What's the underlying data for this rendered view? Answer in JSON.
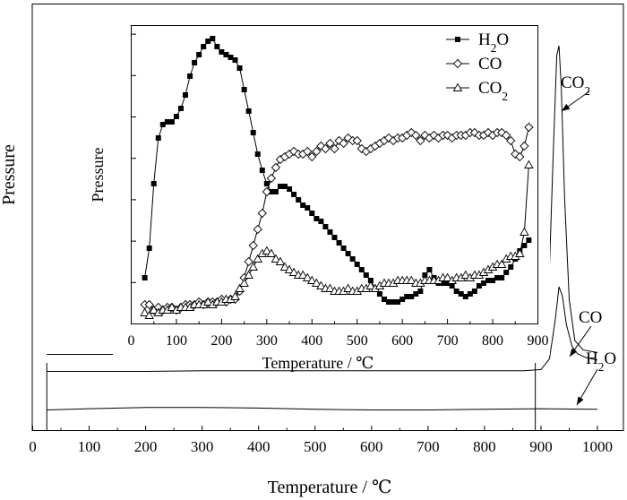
{
  "chart_data": [
    {
      "type": "line",
      "xlabel": "Temperature / ℃",
      "ylabel": "Pressure",
      "xlim": [
        0,
        1000
      ],
      "xticks": [
        "0",
        "100",
        "200",
        "300",
        "400",
        "500",
        "600",
        "700",
        "800",
        "900",
        "1000"
      ],
      "y_tick_labels": false,
      "marker_lines_x": [
        25,
        890
      ],
      "series": [
        {
          "name": "CO2",
          "annotation": "CO2",
          "x": [
            25,
            100,
            200,
            300,
            400,
            500,
            600,
            700,
            800,
            870,
            890,
            905,
            915,
            922,
            928,
            932,
            936,
            942,
            950,
            960,
            975,
            1000
          ],
          "y": [
            0.33,
            0.33,
            0.33,
            0.34,
            0.34,
            0.34,
            0.34,
            0.34,
            0.34,
            0.35,
            0.4,
            0.65,
            1.7,
            3.6,
            5.1,
            5.25,
            4.6,
            2.8,
            1.2,
            0.55,
            0.4,
            0.36
          ]
        },
        {
          "name": "CO",
          "annotation": "CO",
          "x": [
            25,
            100,
            200,
            300,
            400,
            500,
            600,
            700,
            800,
            870,
            900,
            915,
            925,
            932,
            938,
            945,
            955,
            965,
            980,
            1000
          ],
          "y": [
            0.2,
            0.2,
            0.2,
            0.21,
            0.21,
            0.21,
            0.21,
            0.21,
            0.21,
            0.21,
            0.23,
            0.4,
            1.0,
            1.55,
            1.4,
            0.95,
            0.6,
            0.48,
            0.42,
            0.38
          ]
        },
        {
          "name": "H2O",
          "annotation": "H2O",
          "x": [
            25,
            100,
            200,
            300,
            400,
            500,
            600,
            700,
            800,
            900,
            1000
          ],
          "y": [
            0.01,
            0.03,
            0.05,
            0.05,
            0.04,
            0.02,
            0.01,
            0.01,
            0.02,
            0.03,
            0.02
          ]
        }
      ],
      "annotations": [
        "CO2",
        "CO",
        "H2O"
      ]
    },
    {
      "type": "line",
      "inset": true,
      "xlabel": "Temperature / ℃",
      "ylabel": "Pressure",
      "xlim": [
        0,
        900
      ],
      "xticks": [
        "0",
        "100",
        "200",
        "300",
        "400",
        "500",
        "600",
        "700",
        "800",
        "900"
      ],
      "y_tick_labels": false,
      "legend": {
        "position": "top-right",
        "entries": [
          "H2O",
          "CO",
          "CO2"
        ]
      },
      "series": [
        {
          "name": "H2O",
          "marker": "filled-square",
          "x": [
            30,
            40,
            50,
            60,
            70,
            80,
            90,
            100,
            110,
            120,
            130,
            140,
            150,
            160,
            170,
            180,
            190,
            200,
            210,
            220,
            230,
            240,
            250,
            260,
            270,
            280,
            290,
            300,
            310,
            320,
            330,
            340,
            350,
            360,
            370,
            380,
            390,
            400,
            410,
            420,
            430,
            440,
            450,
            460,
            470,
            480,
            490,
            500,
            510,
            520,
            530,
            540,
            550,
            560,
            570,
            580,
            590,
            600,
            610,
            620,
            630,
            640,
            650,
            660,
            670,
            680,
            690,
            700,
            710,
            720,
            730,
            740,
            750,
            760,
            770,
            780,
            790,
            800,
            810,
            820,
            830,
            840,
            850,
            860,
            870,
            880
          ],
          "y": [
            0.1,
            0.21,
            0.45,
            0.62,
            0.67,
            0.68,
            0.68,
            0.7,
            0.73,
            0.78,
            0.85,
            0.9,
            0.93,
            0.96,
            0.98,
            0.99,
            0.96,
            0.94,
            0.93,
            0.92,
            0.91,
            0.88,
            0.8,
            0.72,
            0.64,
            0.56,
            0.5,
            0.45,
            0.42,
            0.42,
            0.44,
            0.44,
            0.43,
            0.41,
            0.39,
            0.37,
            0.36,
            0.34,
            0.32,
            0.31,
            0.29,
            0.27,
            0.25,
            0.23,
            0.21,
            0.19,
            0.17,
            0.15,
            0.13,
            0.11,
            0.09,
            0.06,
            0.04,
            0.02,
            0.01,
            0.01,
            0.01,
            0.02,
            0.03,
            0.03,
            0.04,
            0.05,
            0.11,
            0.13,
            0.1,
            0.08,
            0.08,
            0.08,
            0.07,
            0.05,
            0.04,
            0.03,
            0.04,
            0.05,
            0.07,
            0.08,
            0.09,
            0.09,
            0.1,
            0.1,
            0.12,
            0.14,
            0.17,
            0.2,
            0.22,
            0.24
          ]
        },
        {
          "name": "CO",
          "marker": "open-diamond",
          "x": [
            30,
            40,
            50,
            60,
            70,
            80,
            90,
            100,
            110,
            120,
            130,
            140,
            150,
            160,
            170,
            180,
            190,
            200,
            210,
            220,
            230,
            240,
            250,
            260,
            270,
            280,
            290,
            300,
            310,
            320,
            330,
            340,
            350,
            360,
            370,
            380,
            390,
            400,
            410,
            420,
            430,
            440,
            450,
            460,
            470,
            480,
            490,
            500,
            510,
            520,
            530,
            540,
            550,
            560,
            570,
            580,
            590,
            600,
            610,
            620,
            630,
            640,
            650,
            660,
            670,
            680,
            690,
            700,
            710,
            720,
            730,
            740,
            750,
            760,
            770,
            780,
            790,
            800,
            810,
            820,
            830,
            840,
            850,
            860,
            870,
            880
          ],
          "y": [
            0.0,
            0.0,
            -0.02,
            -0.01,
            -0.02,
            -0.01,
            -0.01,
            -0.02,
            -0.01,
            0.0,
            0.0,
            0.0,
            0.01,
            0.0,
            0.01,
            0.01,
            0.01,
            0.02,
            0.01,
            0.02,
            0.02,
            0.05,
            0.1,
            0.16,
            0.22,
            0.28,
            0.34,
            0.42,
            0.47,
            0.51,
            0.54,
            0.55,
            0.56,
            0.57,
            0.56,
            0.56,
            0.57,
            0.55,
            0.57,
            0.59,
            0.58,
            0.6,
            0.58,
            0.61,
            0.6,
            0.62,
            0.61,
            0.61,
            0.58,
            0.57,
            0.58,
            0.59,
            0.6,
            0.61,
            0.62,
            0.61,
            0.62,
            0.62,
            0.63,
            0.64,
            0.63,
            0.61,
            0.63,
            0.62,
            0.63,
            0.62,
            0.63,
            0.63,
            0.62,
            0.63,
            0.63,
            0.63,
            0.64,
            0.64,
            0.63,
            0.63,
            0.64,
            0.63,
            0.64,
            0.64,
            0.63,
            0.61,
            0.56,
            0.55,
            0.59,
            0.66
          ]
        },
        {
          "name": "CO2",
          "marker": "open-triangle",
          "x": [
            30,
            40,
            50,
            60,
            70,
            80,
            90,
            100,
            110,
            120,
            130,
            140,
            150,
            160,
            170,
            180,
            190,
            200,
            210,
            220,
            230,
            240,
            250,
            260,
            270,
            280,
            290,
            300,
            310,
            320,
            330,
            340,
            350,
            360,
            370,
            380,
            390,
            400,
            410,
            420,
            430,
            440,
            450,
            460,
            470,
            480,
            490,
            500,
            510,
            520,
            530,
            540,
            550,
            560,
            570,
            580,
            590,
            600,
            610,
            620,
            630,
            640,
            650,
            660,
            670,
            680,
            690,
            700,
            710,
            720,
            730,
            740,
            750,
            760,
            770,
            780,
            790,
            800,
            810,
            820,
            830,
            840,
            850,
            860,
            870,
            880
          ],
          "y": [
            -0.03,
            -0.04,
            -0.02,
            -0.03,
            -0.02,
            -0.02,
            -0.01,
            -0.02,
            -0.01,
            -0.01,
            -0.01,
            0.0,
            0.0,
            0.0,
            0.01,
            0.0,
            0.01,
            0.01,
            0.02,
            0.02,
            0.03,
            0.06,
            0.08,
            0.11,
            0.14,
            0.17,
            0.19,
            0.2,
            0.19,
            0.17,
            0.16,
            0.14,
            0.13,
            0.12,
            0.11,
            0.11,
            0.1,
            0.09,
            0.08,
            0.07,
            0.06,
            0.06,
            0.05,
            0.05,
            0.05,
            0.06,
            0.05,
            0.05,
            0.06,
            0.06,
            0.07,
            0.06,
            0.07,
            0.08,
            0.08,
            0.08,
            0.09,
            0.09,
            0.09,
            0.09,
            0.08,
            0.08,
            0.09,
            0.09,
            0.09,
            0.09,
            0.1,
            0.1,
            0.09,
            0.1,
            0.1,
            0.11,
            0.1,
            0.11,
            0.11,
            0.12,
            0.13,
            0.14,
            0.15,
            0.15,
            0.17,
            0.18,
            0.18,
            0.19,
            0.27,
            0.52
          ]
        }
      ]
    }
  ]
}
